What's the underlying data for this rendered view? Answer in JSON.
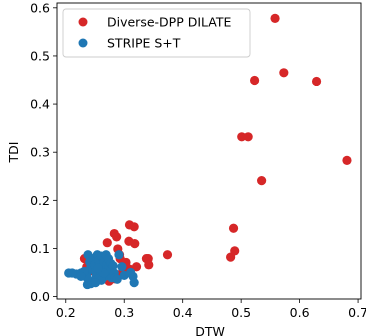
{
  "chart_data": {
    "type": "scatter",
    "xlabel": "DTW",
    "ylabel": "TDI",
    "xlim": [
      0.185,
      0.705
    ],
    "ylim": [
      -0.005,
      0.61
    ],
    "x_ticks": [
      0.2,
      0.3,
      0.4,
      0.5,
      0.6,
      0.7
    ],
    "x_tick_labels": [
      "0.2",
      "0.3",
      "0.4",
      "0.5",
      "0.6",
      "0.7"
    ],
    "y_ticks": [
      0.0,
      0.1,
      0.2,
      0.3,
      0.4,
      0.5,
      0.6
    ],
    "y_tick_labels": [
      "0.0",
      "0.1",
      "0.2",
      "0.3",
      "0.4",
      "0.5",
      "0.6"
    ],
    "grid": false,
    "legend_position": "top-left",
    "series": [
      {
        "name": "Diverse-DPP DILATE",
        "color": "#d62728",
        "points": [
          [
            0.558,
            0.578
          ],
          [
            0.573,
            0.465
          ],
          [
            0.523,
            0.449
          ],
          [
            0.629,
            0.447
          ],
          [
            0.501,
            0.332
          ],
          [
            0.512,
            0.332
          ],
          [
            0.681,
            0.283
          ],
          [
            0.535,
            0.241
          ],
          [
            0.487,
            0.142
          ],
          [
            0.482,
            0.082
          ],
          [
            0.489,
            0.095
          ],
          [
            0.374,
            0.087
          ],
          [
            0.341,
            0.079
          ],
          [
            0.338,
            0.079
          ],
          [
            0.342,
            0.066
          ],
          [
            0.309,
            0.149
          ],
          [
            0.317,
            0.145
          ],
          [
            0.283,
            0.131
          ],
          [
            0.287,
            0.124
          ],
          [
            0.308,
            0.115
          ],
          [
            0.318,
            0.11
          ],
          [
            0.271,
            0.112
          ],
          [
            0.289,
            0.099
          ],
          [
            0.292,
            0.087
          ],
          [
            0.293,
            0.079
          ],
          [
            0.303,
            0.071
          ],
          [
            0.303,
            0.062
          ],
          [
            0.309,
            0.057
          ],
          [
            0.321,
            0.062
          ],
          [
            0.301,
            0.052
          ],
          [
            0.296,
            0.049
          ],
          [
            0.276,
            0.052
          ],
          [
            0.268,
            0.041
          ],
          [
            0.283,
            0.037
          ],
          [
            0.274,
            0.032
          ],
          [
            0.258,
            0.046
          ],
          [
            0.232,
            0.079
          ],
          [
            0.236,
            0.062
          ],
          [
            0.243,
            0.054
          ]
        ]
      },
      {
        "name": "STRIPE S+T",
        "color": "#1f77b4",
        "points": [
          [
            0.205,
            0.049
          ],
          [
            0.211,
            0.049
          ],
          [
            0.218,
            0.047
          ],
          [
            0.226,
            0.049
          ],
          [
            0.229,
            0.049
          ],
          [
            0.233,
            0.052
          ],
          [
            0.236,
            0.047
          ],
          [
            0.238,
            0.087
          ],
          [
            0.241,
            0.072
          ],
          [
            0.243,
            0.062
          ],
          [
            0.246,
            0.057
          ],
          [
            0.247,
            0.079
          ],
          [
            0.249,
            0.066
          ],
          [
            0.251,
            0.052
          ],
          [
            0.252,
            0.042
          ],
          [
            0.254,
            0.087
          ],
          [
            0.256,
            0.074
          ],
          [
            0.258,
            0.066
          ],
          [
            0.259,
            0.054
          ],
          [
            0.261,
            0.084
          ],
          [
            0.262,
            0.062
          ],
          [
            0.263,
            0.047
          ],
          [
            0.265,
            0.07
          ],
          [
            0.266,
            0.054
          ],
          [
            0.267,
            0.042
          ],
          [
            0.269,
            0.087
          ],
          [
            0.27,
            0.066
          ],
          [
            0.271,
            0.052
          ],
          [
            0.273,
            0.079
          ],
          [
            0.274,
            0.062
          ],
          [
            0.275,
            0.047
          ],
          [
            0.277,
            0.069
          ],
          [
            0.278,
            0.057
          ],
          [
            0.279,
            0.039
          ],
          [
            0.281,
            0.064
          ],
          [
            0.283,
            0.049
          ],
          [
            0.284,
            0.039
          ],
          [
            0.256,
            0.037
          ],
          [
            0.261,
            0.034
          ],
          [
            0.247,
            0.032
          ],
          [
            0.243,
            0.027
          ],
          [
            0.237,
            0.025
          ],
          [
            0.251,
            0.029
          ],
          [
            0.236,
            0.04
          ],
          [
            0.231,
            0.052
          ],
          [
            0.226,
            0.042
          ],
          [
            0.291,
            0.087
          ],
          [
            0.296,
            0.062
          ],
          [
            0.315,
            0.042
          ],
          [
            0.317,
            0.029
          ],
          [
            0.311,
            0.05
          ],
          [
            0.3,
            0.044
          ],
          [
            0.288,
            0.036
          ],
          [
            0.265,
            0.049
          ],
          [
            0.255,
            0.059
          ]
        ]
      }
    ]
  }
}
